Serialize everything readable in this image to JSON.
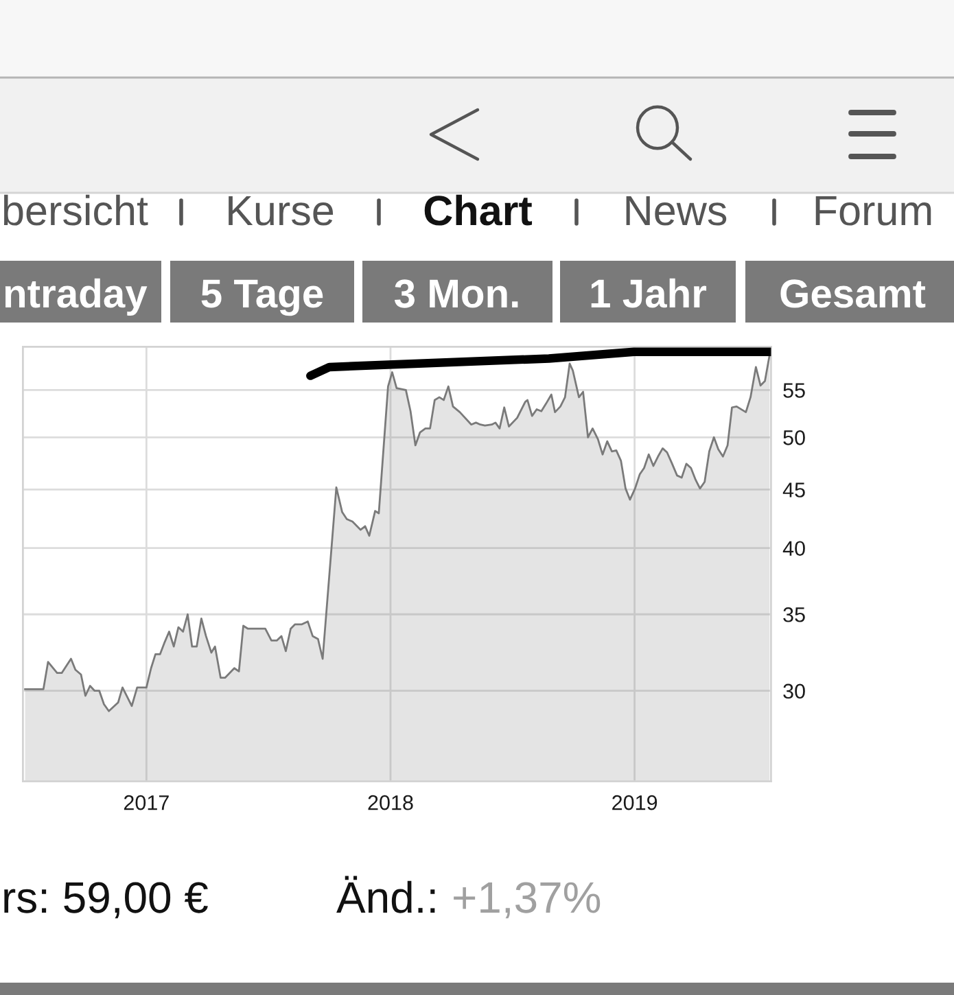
{
  "chart_data": {
    "type": "area",
    "log": "y",
    "grid": true,
    "xlim": [
      2016.494,
      2019.559
    ],
    "xticks": [
      2017,
      2018,
      2019
    ],
    "ylim": [
      25,
      60
    ],
    "yticks": [
      30,
      35,
      40,
      45,
      50,
      55
    ],
    "series": [
      {
        "color": "#7a7a7a",
        "x": [
          2016.503,
          2016.578,
          2016.597,
          2016.634,
          2016.653,
          2016.691,
          2016.709,
          2016.732,
          2016.75,
          2016.769,
          2016.788,
          2016.807,
          2016.826,
          2016.846,
          2016.884,
          2016.902,
          2016.94,
          2016.962,
          2017.0,
          2017.019,
          2017.037,
          2017.056,
          2017.075,
          2017.093,
          2017.112,
          2017.131,
          2017.15,
          2017.169,
          2017.187,
          2017.206,
          2017.225,
          2017.244,
          2017.266,
          2017.281,
          2017.304,
          2017.322,
          2017.36,
          2017.379,
          2017.397,
          2017.416,
          2017.487,
          2017.512,
          2017.534,
          2017.553,
          2017.571,
          2017.591,
          2017.609,
          2017.637,
          2017.661,
          2017.681,
          2017.703,
          2017.722,
          2017.778,
          2017.802,
          2017.821,
          2017.844,
          2017.877,
          2017.896,
          2017.913,
          2017.937,
          2017.952,
          2017.99,
          2018.007,
          2018.025,
          2018.063,
          2018.082,
          2018.102,
          2018.121,
          2018.143,
          2018.162,
          2018.181,
          2018.2,
          2018.218,
          2018.237,
          2018.256,
          2018.284,
          2018.331,
          2018.35,
          2018.368,
          2018.387,
          2018.415,
          2018.43,
          2018.447,
          2018.466,
          2018.485,
          2018.519,
          2018.552,
          2018.561,
          2018.58,
          2018.599,
          2018.618,
          2018.637,
          2018.659,
          2018.674,
          2018.696,
          2018.715,
          2018.734,
          2018.747,
          2018.772,
          2018.789,
          2018.809,
          2018.828,
          2018.85,
          2018.869,
          2018.888,
          2018.907,
          2018.925,
          2018.944,
          2018.963,
          2018.981,
          2019.002,
          2019.021,
          2019.039,
          2019.058,
          2019.077,
          2019.096,
          2019.115,
          2019.133,
          2019.152,
          2019.174,
          2019.193,
          2019.212,
          2019.231,
          2019.25,
          2019.268,
          2019.287,
          2019.306,
          2019.325,
          2019.343,
          2019.362,
          2019.381,
          2019.399,
          2019.418,
          2019.456,
          2019.475,
          2019.497,
          2019.516,
          2019.534,
          2019.553
        ],
        "values": [
          30.1,
          30.1,
          31.8,
          31.1,
          31.1,
          32.0,
          31.3,
          31.0,
          29.7,
          30.3,
          30.0,
          30.0,
          29.2,
          28.8,
          29.3,
          30.2,
          29.1,
          30.2,
          30.2,
          31.4,
          32.3,
          32.3,
          33.1,
          33.8,
          32.8,
          34.1,
          33.8,
          35.0,
          32.8,
          32.8,
          34.7,
          33.5,
          32.4,
          32.8,
          30.8,
          30.8,
          31.4,
          31.2,
          34.2,
          34.0,
          34.0,
          33.2,
          33.2,
          33.5,
          32.5,
          34.0,
          34.3,
          34.3,
          34.5,
          33.5,
          33.3,
          32.0,
          45.2,
          43.0,
          42.4,
          42.2,
          41.5,
          41.8,
          41.0,
          43.1,
          42.9,
          55.4,
          57.0,
          55.2,
          55.0,
          52.7,
          49.2,
          50.5,
          50.9,
          50.9,
          53.9,
          54.2,
          53.9,
          55.4,
          53.2,
          52.6,
          51.3,
          51.5,
          51.3,
          51.2,
          51.3,
          51.5,
          50.9,
          53.1,
          51.1,
          52.0,
          53.7,
          53.9,
          52.2,
          52.9,
          52.7,
          53.5,
          54.5,
          52.6,
          53.2,
          54.2,
          58.0,
          57.2,
          54.2,
          54.8,
          50.0,
          50.9,
          49.8,
          48.3,
          49.6,
          48.6,
          48.7,
          47.7,
          45.1,
          44.1,
          45.1,
          46.4,
          47.0,
          48.3,
          47.2,
          48.1,
          48.9,
          48.5,
          47.5,
          46.3,
          46.1,
          47.4,
          47.0,
          45.9,
          45.1,
          45.7,
          48.6,
          50.0,
          48.8,
          48.1,
          49.2,
          53.1,
          53.2,
          52.6,
          54.2,
          57.6,
          55.5,
          56.0,
          59.0
        ]
      },
      {
        "type": "line",
        "color": "#000000",
        "x": [
          2017.672,
          2017.75,
          2018.649,
          2018.997,
          2019.559
        ],
        "values": [
          56.6,
          57.6,
          58.6,
          59.4,
          59.4
        ]
      }
    ],
    "annotations": [
      "bersicht",
      "Kurse",
      "Chart",
      "News",
      "Forum",
      "ntraday",
      "5 Tage",
      "3 Mon.",
      "1 Jahr",
      "Gesamt",
      "rs: 59,00 €",
      "Änd.:",
      "+1,37%"
    ]
  }
}
